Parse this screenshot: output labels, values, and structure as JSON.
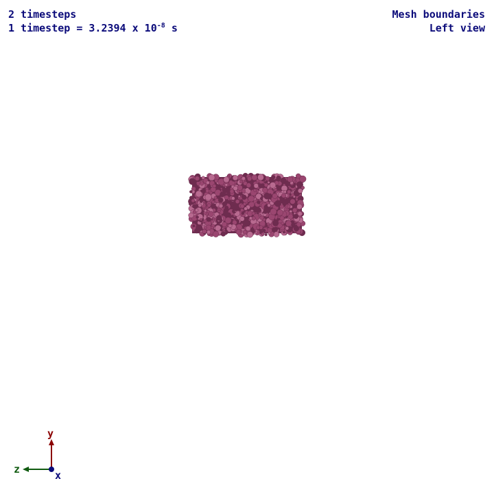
{
  "hud": {
    "timesteps": "2 timesteps",
    "timestep_prefix": "1 timestep = 3.2394 x 10",
    "timestep_exponent": "-8",
    "timestep_unit": " s",
    "mode": "Mesh boundaries",
    "view": "Left view"
  },
  "axes": {
    "y_label": "y",
    "z_label": "z",
    "x_label": "x",
    "colors": {
      "y": "#8b0000",
      "z": "#0f5a0f",
      "x": "#0b0b7a"
    }
  },
  "mesh": {
    "color": "#9a4670",
    "shade_color": "#6e2c4f",
    "highlight_color": "#b86a90"
  },
  "colors": {
    "hud_text": "#0b0b7a",
    "background": "#ffffff"
  }
}
